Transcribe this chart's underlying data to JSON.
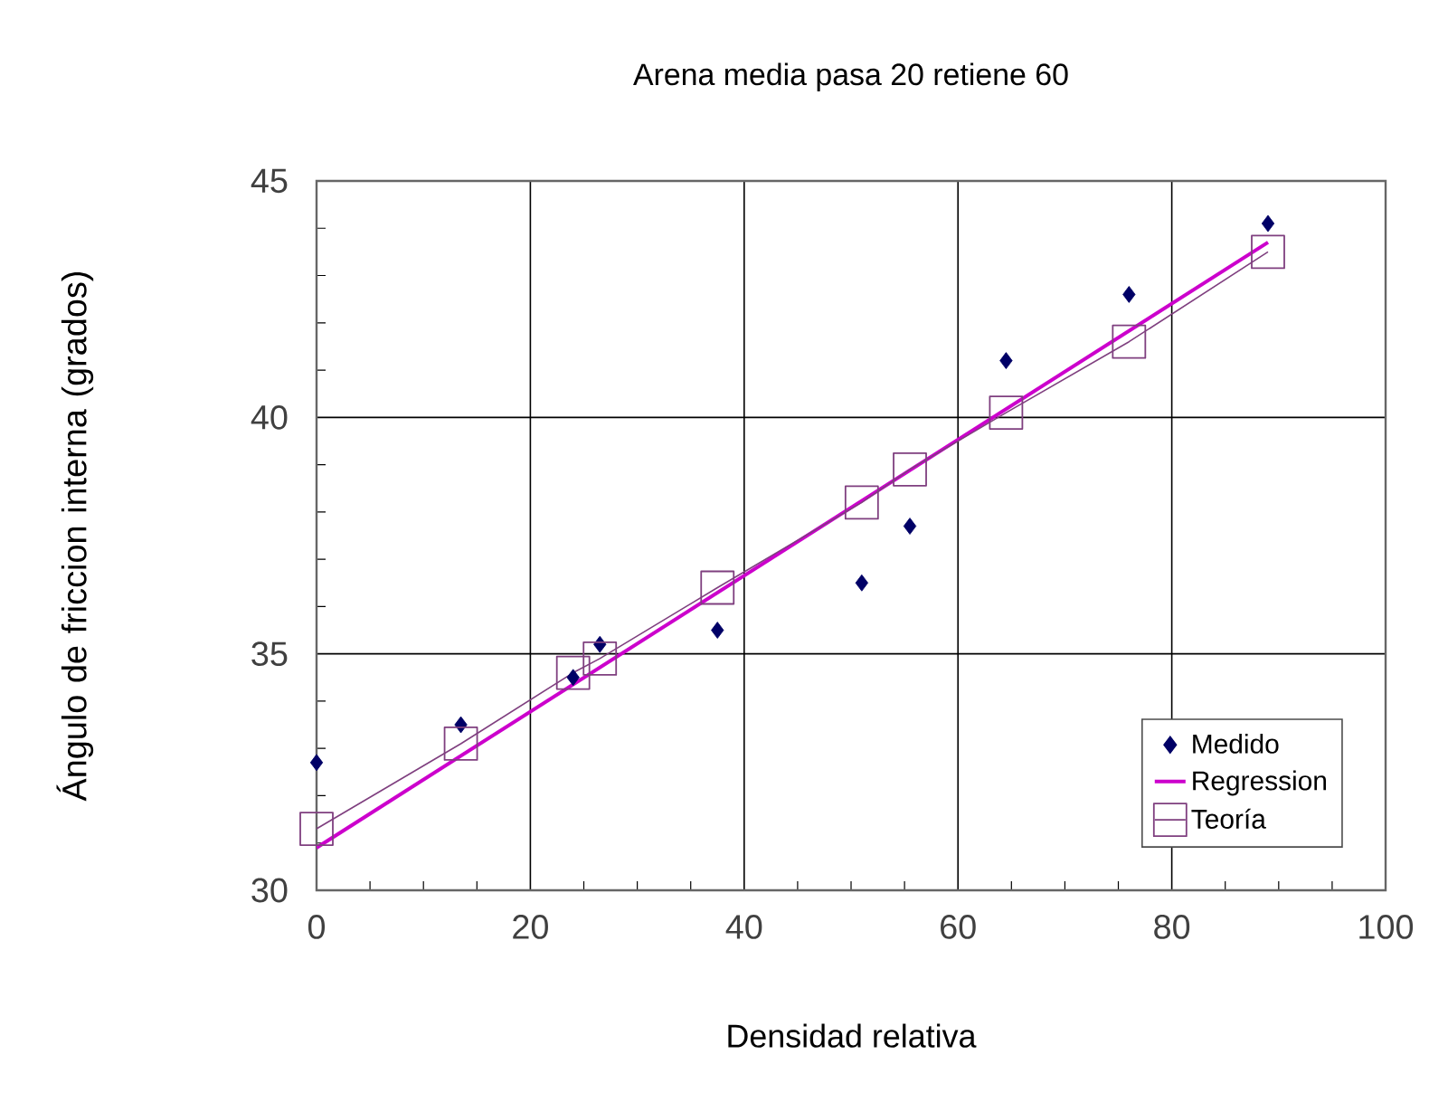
{
  "chart_data": {
    "type": "scatter",
    "title": "Arena media pasa 20 retiene 60",
    "xlabel": "Densidad relativa",
    "ylabel": "Ángulo de friccion interna (grados)",
    "xlim": [
      0,
      100
    ],
    "ylim": [
      30,
      45
    ],
    "xticks": [
      0,
      20,
      40,
      60,
      80,
      100
    ],
    "yticks": [
      30,
      35,
      40,
      45
    ],
    "grid": true,
    "legend": "bottom right",
    "series": [
      {
        "name": "Medido",
        "type": "scatter",
        "marker": "diamond",
        "color": "#000066",
        "x": [
          0,
          13.5,
          24,
          26.5,
          37.5,
          51,
          55.5,
          64.5,
          76,
          89
        ],
        "values": [
          32.7,
          33.5,
          34.5,
          35.2,
          35.5,
          36.5,
          37.7,
          41.2,
          42.6,
          44.1
        ]
      },
      {
        "name": "Regression",
        "type": "line",
        "marker": "none",
        "color": "#cc00cc",
        "x": [
          0,
          89
        ],
        "values": [
          30.9,
          43.7
        ]
      },
      {
        "name": "Teoría",
        "type": "line",
        "marker": "square",
        "color": "#7f3f7f",
        "x": [
          0,
          13.5,
          24,
          26.5,
          37.5,
          51,
          55.5,
          64.5,
          76,
          89
        ],
        "values": [
          31.3,
          33.1,
          34.6,
          34.9,
          36.4,
          38.2,
          38.9,
          40.1,
          41.6,
          43.5
        ]
      }
    ]
  }
}
